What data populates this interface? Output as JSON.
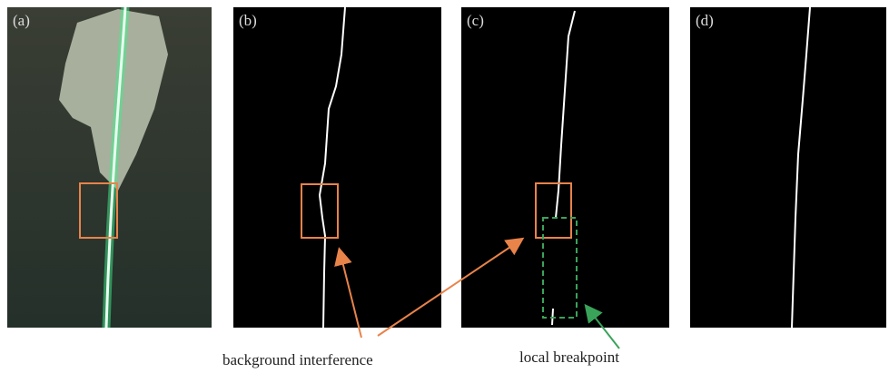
{
  "panels": [
    {
      "label": "(a)"
    },
    {
      "label": "(b)"
    },
    {
      "label": "(c)"
    },
    {
      "label": "(d)"
    }
  ],
  "annotations": {
    "background_interference": "background interference",
    "local_breakpoint": "local breakpoint"
  }
}
